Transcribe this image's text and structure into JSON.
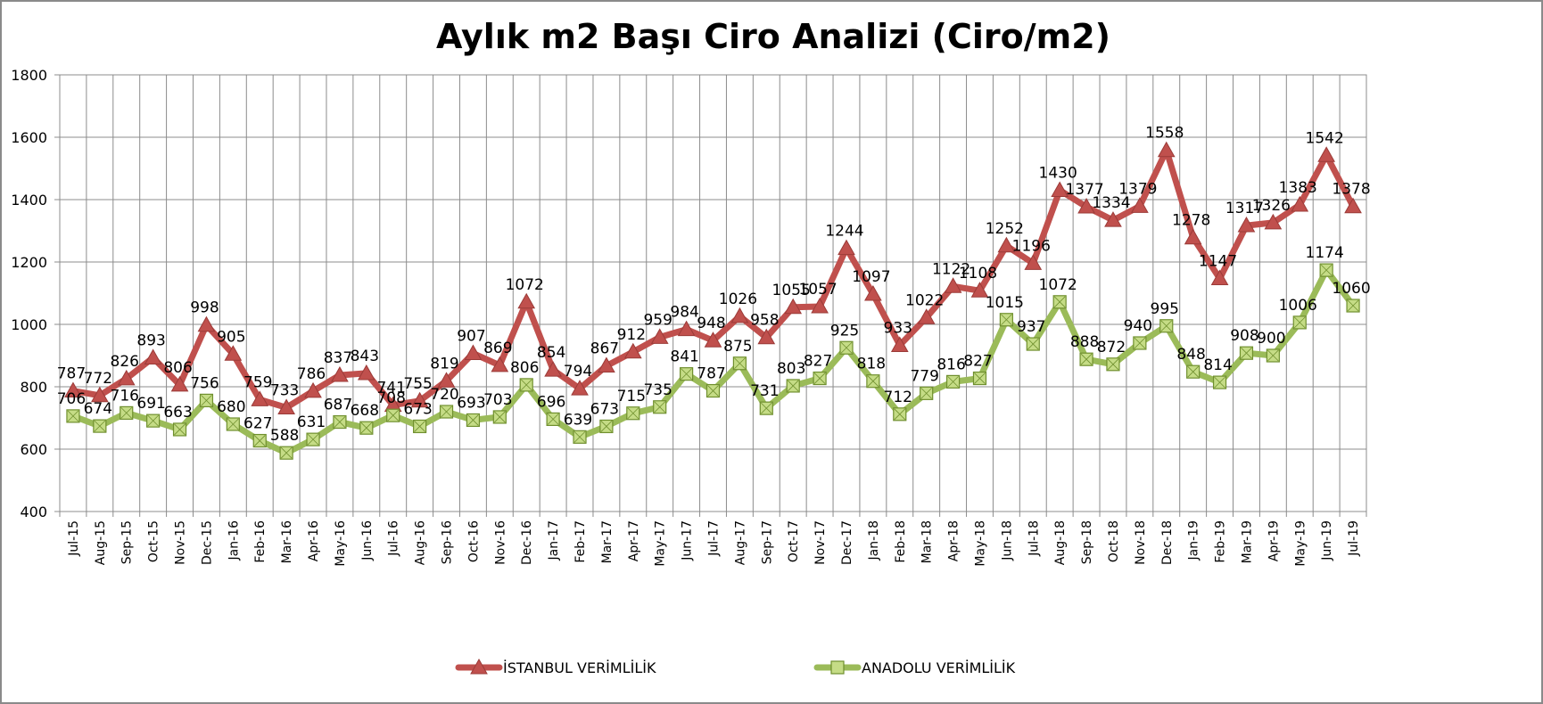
{
  "chart_data": {
    "type": "line",
    "title": "Aylık m2 Başı Ciro Analizi (Ciro/m2)",
    "xlabel": "",
    "ylabel": "",
    "ylim": [
      400,
      1800
    ],
    "yticks": [
      400,
      600,
      800,
      1000,
      1200,
      1400,
      1600,
      1800
    ],
    "grid": true,
    "legend_position": "bottom",
    "categories": [
      "Jul-15",
      "Aug-15",
      "Sep-15",
      "Oct-15",
      "Nov-15",
      "Dec-15",
      "Jan-16",
      "Feb-16",
      "Mar-16",
      "Apr-16",
      "May-16",
      "Jun-16",
      "Jul-16",
      "Aug-16",
      "Sep-16",
      "Oct-16",
      "Nov-16",
      "Dec-16",
      "Jan-17",
      "Feb-17",
      "Mar-17",
      "Apr-17",
      "May-17",
      "Jun-17",
      "Jul-17",
      "Aug-17",
      "Sep-17",
      "Oct-17",
      "Nov-17",
      "Dec-17",
      "Jan-18",
      "Feb-18",
      "Mar-18",
      "Apr-18",
      "May-18",
      "Jun-18",
      "Jul-18",
      "Aug-18",
      "Sep-18",
      "Oct-18",
      "Nov-18",
      "Dec-18",
      "Jan-19",
      "Feb-19",
      "Mar-19",
      "Apr-19",
      "May-19",
      "Jun-19",
      "Jul-19"
    ],
    "series": [
      {
        "name": "İSTANBUL VERİMLİLİK",
        "color": "#c0504d",
        "marker": "triangle",
        "values": [
          787,
          772,
          826,
          893,
          806,
          998,
          905,
          759,
          733,
          786,
          837,
          843,
          741,
          755,
          819,
          907,
          869,
          1072,
          854,
          794,
          867,
          912,
          959,
          984,
          948,
          1026,
          958,
          1055,
          1057,
          1244,
          1097,
          933,
          1022,
          1122,
          1108,
          1252,
          1196,
          1430,
          1377,
          1334,
          1379,
          1558,
          1278,
          1147,
          1317,
          1326,
          1383,
          1542,
          1378
        ]
      },
      {
        "name": "ANADOLU VERİMLİLİK",
        "color": "#9bbb59",
        "marker": "square",
        "values": [
          706,
          674,
          716,
          691,
          663,
          756,
          680,
          627,
          588,
          631,
          687,
          668,
          708,
          673,
          720,
          693,
          703,
          806,
          696,
          639,
          673,
          715,
          735,
          841,
          787,
          875,
          731,
          803,
          827,
          925,
          818,
          712,
          779,
          816,
          827,
          1015,
          937,
          1072,
          888,
          872,
          940,
          995,
          848,
          814,
          908,
          900,
          1006,
          1174,
          1060
        ]
      }
    ]
  }
}
